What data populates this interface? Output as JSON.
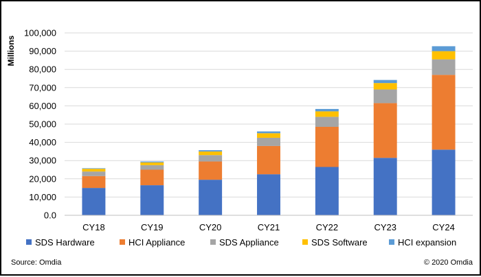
{
  "chart_data": {
    "type": "bar",
    "stacked": true,
    "ylabel": "Millions",
    "xlabel": "",
    "ylim": [
      0,
      100000
    ],
    "yticks": [
      0,
      10000,
      20000,
      30000,
      40000,
      50000,
      60000,
      70000,
      80000,
      90000,
      100000
    ],
    "ytick_labels": [
      "0.0",
      "10,000",
      "20,000",
      "30,000",
      "40,000",
      "50,000",
      "60,000",
      "70,000",
      "80,000",
      "90,000",
      "100,000"
    ],
    "grid": true,
    "legend_position": "bottom",
    "categories": [
      "CY18",
      "CY19",
      "CY20",
      "CY21",
      "CY22",
      "CY23",
      "CY24"
    ],
    "series": [
      {
        "name": "SDS Hardware",
        "color": "#4472C4",
        "values": [
          15000,
          16500,
          19500,
          22500,
          26500,
          31500,
          36000
        ]
      },
      {
        "name": "HCI Appliance",
        "color": "#ED7D31",
        "values": [
          6500,
          8500,
          10000,
          15500,
          22000,
          30000,
          41000
        ]
      },
      {
        "name": "SDS Appliance",
        "color": "#A5A5A5",
        "values": [
          2500,
          2500,
          3500,
          4500,
          5500,
          7500,
          8500
        ]
      },
      {
        "name": "SDS Software",
        "color": "#FFC000",
        "values": [
          1500,
          1500,
          2000,
          2500,
          3000,
          3500,
          4500
        ]
      },
      {
        "name": "HCI expansion",
        "color": "#5B9BD5",
        "values": [
          300,
          500,
          700,
          1000,
          1300,
          1700,
          2700
        ]
      }
    ]
  },
  "footer": {
    "source": "Source: Omdia",
    "copyright": "© 2020 Omdia"
  }
}
